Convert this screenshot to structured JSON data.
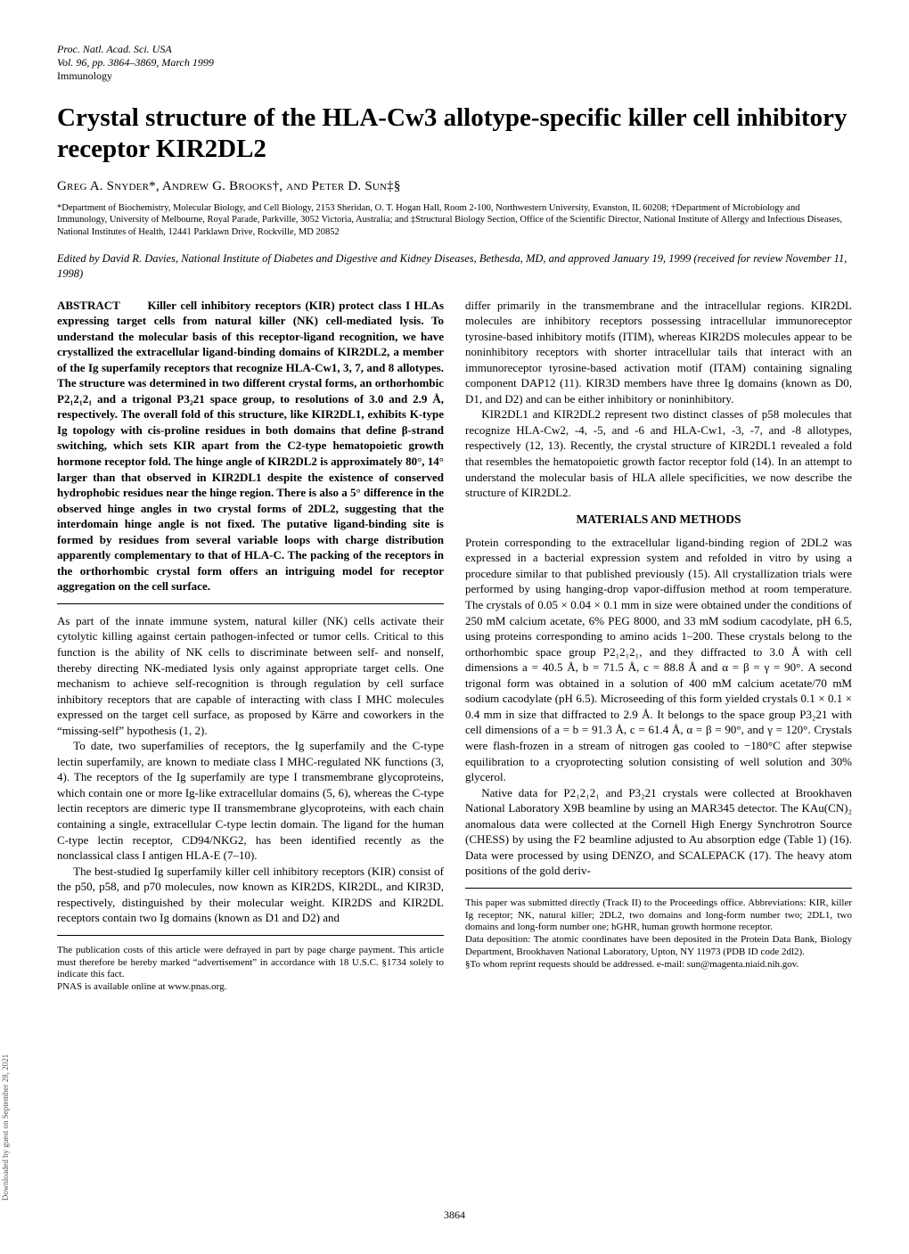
{
  "journal": {
    "proc": "Proc. Natl. Acad. Sci. USA",
    "vol": "Vol. 96, pp. 3864–3869, March 1999",
    "section": "Immunology"
  },
  "title": "Crystal structure of the HLA-Cw3 allotype-specific killer cell inhibitory receptor KIR2DL2",
  "authors_html": "Greg A. Snyder*, Andrew G. Brooks†, and Peter D. Sun‡§",
  "affiliations": "*Department of Biochemistry, Molecular Biology, and Cell Biology, 2153 Sheridan, O. T. Hogan Hall, Room 2-100, Northwestern University, Evanston, IL 60208; †Department of Microbiology and Immunology, University of Melbourne, Royal Parade, Parkville, 3052 Victoria, Australia; and ‡Structural Biology Section, Office of the Scientific Director, National Institute of Allergy and Infectious Diseases, National Institutes of Health, 12441 Parklawn Drive, Rockville, MD 20852",
  "edited": "Edited by David R. Davies, National Institute of Diabetes and Digestive and Kidney Diseases, Bethesda, MD, and approved January 19, 1999 (received for review November 11, 1998)",
  "abstract_label": "ABSTRACT",
  "abstract": "Killer cell inhibitory receptors (KIR) protect class I HLAs expressing target cells from natural killer (NK) cell-mediated lysis. To understand the molecular basis of this receptor-ligand recognition, we have crystallized the extracellular ligand-binding domains of KIR2DL2, a member of the Ig superfamily receptors that recognize HLA-Cw1, 3, 7, and 8 allotypes. The structure was determined in two different crystal forms, an orthorhombic P2₁2₁2₁ and a trigonal P3₂21 space group, to resolutions of 3.0 and 2.9 Å, respectively. The overall fold of this structure, like KIR2DL1, exhibits K-type Ig topology with cis-proline residues in both domains that define β-strand switching, which sets KIR apart from the C2-type hematopoietic growth hormone receptor fold. The hinge angle of KIR2DL2 is approximately 80°, 14° larger than that observed in KIR2DL1 despite the existence of conserved hydrophobic residues near the hinge region. There is also a 5° difference in the observed hinge angles in two crystal forms of 2DL2, suggesting that the interdomain hinge angle is not fixed. The putative ligand-binding site is formed by residues from several variable loops with charge distribution apparently complementary to that of HLA-C. The packing of the receptors in the orthorhombic crystal form offers an intriguing model for receptor aggregation on the cell surface.",
  "body": {
    "p1": "As part of the innate immune system, natural killer (NK) cells activate their cytolytic killing against certain pathogen-infected or tumor cells. Critical to this function is the ability of NK cells to discriminate between self- and nonself, thereby directing NK-mediated lysis only against appropriate target cells. One mechanism to achieve self-recognition is through regulation by cell surface inhibitory receptors that are capable of interacting with class I MHC molecules expressed on the target cell surface, as proposed by Kärre and coworkers in the “missing-self” hypothesis (1, 2).",
    "p2": "To date, two superfamilies of receptors, the Ig superfamily and the C-type lectin superfamily, are known to mediate class I MHC-regulated NK functions (3, 4). The receptors of the Ig superfamily are type I transmembrane glycoproteins, which contain one or more Ig-like extracellular domains (5, 6), whereas the C-type lectin receptors are dimeric type II transmembrane glycoproteins, with each chain containing a single, extracellular C-type lectin domain. The ligand for the human C-type lectin receptor, CD94/NKG2, has been identified recently as the nonclassical class I antigen HLA-E (7–10).",
    "p3": "The best-studied Ig superfamily killer cell inhibitory receptors (KIR) consist of the p50, p58, and p70 molecules, now known as KIR2DS, KIR2DL, and KIR3D, respectively, distinguished by their molecular weight. KIR2DS and KIR2DL receptors contain two Ig domains (known as D1 and D2) and",
    "p4": "differ primarily in the transmembrane and the intracellular regions. KIR2DL molecules are inhibitory receptors possessing intracellular immunoreceptor tyrosine-based inhibitory motifs (ITIM), whereas KIR2DS molecules appear to be noninhibitory receptors with shorter intracellular tails that interact with an immunoreceptor tyrosine-based activation motif (ITAM) containing signaling component DAP12 (11). KIR3D members have three Ig domains (known as D0, D1, and D2) and can be either inhibitory or noninhibitory.",
    "p5": "KIR2DL1 and KIR2DL2 represent two distinct classes of p58 molecules that recognize HLA-Cw2, -4, -5, and -6 and HLA-Cw1, -3, -7, and -8 allotypes, respectively (12, 13). Recently, the crystal structure of KIR2DL1 revealed a fold that resembles the hematopoietic growth factor receptor fold (14). In an attempt to understand the molecular basis of HLA allele specificities, we now describe the structure of KIR2DL2.",
    "methods_head": "MATERIALS AND METHODS",
    "m1": "Protein corresponding to the extracellular ligand-binding region of 2DL2 was expressed in a bacterial expression system and refolded in vitro by using a procedure similar to that published previously (15). All crystallization trials were performed by using hanging-drop vapor-diffusion method at room temperature. The crystals of 0.05 × 0.04 × 0.1 mm in size were obtained under the conditions of 250 mM calcium acetate, 6% PEG 8000, and 33 mM sodium cacodylate, pH 6.5, using proteins corresponding to amino acids 1–200. These crystals belong to the orthorhombic space group P2₁2₁2₁, and they diffracted to 3.0 Å with cell dimensions a = 40.5 Å, b = 71.5 Å, c = 88.8 Å and α = β = γ = 90°. A second trigonal form was obtained in a solution of 400 mM calcium acetate/70 mM sodium cacodylate (pH 6.5). Microseeding of this form yielded crystals 0.1 × 0.1 × 0.4 mm in size that diffracted to 2.9 Å. It belongs to the space group P3₂21 with cell dimensions of a = b = 91.3 Å, c = 61.4 Å, α = β = 90°, and γ = 120°. Crystals were flash-frozen in a stream of nitrogen gas cooled to −180°C after stepwise equilibration to a cryoprotecting solution consisting of well solution and 30% glycerol.",
    "m2": "Native data for P2₁2₁2₁ and P3₂21 crystals were collected at Brookhaven National Laboratory X9B beamline by using an MAR345 detector. The KAu(CN)₂ anomalous data were collected at the Cornell High Energy Synchrotron Source (CHESS) by using the F2 beamline adjusted to Au absorption edge (Table 1) (16). Data were processed by using DENZO, and SCALEPACK (17). The heavy atom positions of the gold deriv-"
  },
  "footnotes": {
    "left1": "The publication costs of this article were defrayed in part by page charge payment. This article must therefore be hereby marked “advertisement” in accordance with 18 U.S.C. §1734 solely to indicate this fact.",
    "left2": "PNAS is available online at www.pnas.org.",
    "right1": "This paper was submitted directly (Track II) to the Proceedings office. Abbreviations: KIR, killer Ig receptor; NK, natural killer; 2DL2, two domains and long-form number two; 2DL1, two domains and long-form number one; hGHR, human growth hormone receptor.",
    "right2": "Data deposition: The atomic coordinates have been deposited in the Protein Data Bank, Biology Department, Brookhaven National Laboratory, Upton, NY 11973 (PDB ID code 2dl2).",
    "right3": "§To whom reprint requests should be addressed. e-mail: sun@magenta.niaid.nih.gov."
  },
  "pagenum": "3864",
  "vertical_note": "Downloaded by guest on September 28, 2021"
}
